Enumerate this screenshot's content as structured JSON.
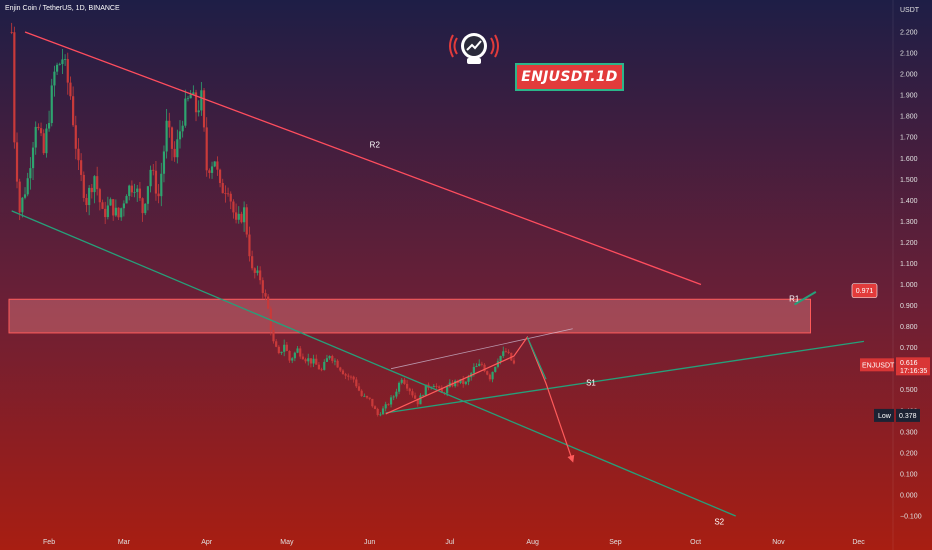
{
  "header": {
    "caption": "Enjin Coin / TetherUS, 1D, BINANCE",
    "currency": "USDT"
  },
  "banner": {
    "text": "ENJUSDT.1D"
  },
  "logo": {
    "icon": "astronaut-radio-logo-icon"
  },
  "colors": {
    "bg_top": "#1e1e46",
    "bg_mid": "#6b1f36",
    "bg_bottom": "#a81e12",
    "up": "#2ea46f",
    "down": "#c93a3a",
    "resistance": "#ff4d5e",
    "support": "#26a07a",
    "zone_fill": "rgba(255,150,150,0.35)",
    "zone_stroke": "#ff5b5b",
    "projection": "#ff5b5b",
    "small_channel": "#e6e6ff"
  },
  "chart_data": {
    "type": "candlestick",
    "symbol": "ENJUSDT",
    "interval": "1D",
    "exchange": "BINANCE",
    "y_axis": {
      "min": -0.15,
      "max": 2.35,
      "ticks": [
        "2.200",
        "2.100",
        "2.000",
        "1.900",
        "1.800",
        "1.700",
        "1.600",
        "1.500",
        "1.400",
        "1.300",
        "1.200",
        "1.100",
        "1.000",
        "0.900",
        "0.800",
        "0.700",
        "0.600",
        "0.500",
        "0.400",
        "0.300",
        "0.200",
        "0.100",
        "0.000",
        "−0.100"
      ],
      "tick_values": [
        2.2,
        2.1,
        2.0,
        1.9,
        1.8,
        1.7,
        1.6,
        1.5,
        1.4,
        1.3,
        1.2,
        1.1,
        1.0,
        0.9,
        0.8,
        0.7,
        0.6,
        0.5,
        0.4,
        0.3,
        0.2,
        0.1,
        0.0,
        -0.1
      ]
    },
    "x_axis": {
      "months": [
        {
          "label": "Feb",
          "day": 31
        },
        {
          "label": "Mar",
          "day": 59
        },
        {
          "label": "Apr",
          "day": 90
        },
        {
          "label": "May",
          "day": 120
        },
        {
          "label": "Jun",
          "day": 151
        },
        {
          "label": "Jul",
          "day": 181
        },
        {
          "label": "Aug",
          "day": 212
        },
        {
          "label": "Sep",
          "day": 243
        },
        {
          "label": "Oct",
          "day": 273
        },
        {
          "label": "Nov",
          "day": 304
        },
        {
          "label": "Dec",
          "day": 334
        }
      ],
      "day_range": [
        16,
        348
      ]
    },
    "price_path": [
      [
        17,
        2.2
      ],
      [
        18,
        1.7
      ],
      [
        20,
        1.35
      ],
      [
        23,
        1.5
      ],
      [
        26,
        1.78
      ],
      [
        29,
        1.62
      ],
      [
        33,
        2.0
      ],
      [
        36,
        2.08
      ],
      [
        39,
        1.9
      ],
      [
        42,
        1.55
      ],
      [
        45,
        1.4
      ],
      [
        48,
        1.52
      ],
      [
        51,
        1.33
      ],
      [
        54,
        1.38
      ],
      [
        57,
        1.32
      ],
      [
        60,
        1.45
      ],
      [
        63,
        1.48
      ],
      [
        66,
        1.35
      ],
      [
        69,
        1.55
      ],
      [
        72,
        1.42
      ],
      [
        75,
        1.75
      ],
      [
        78,
        1.6
      ],
      [
        81,
        1.8
      ],
      [
        84,
        1.9
      ],
      [
        86,
        1.83
      ],
      [
        88,
        1.88
      ],
      [
        90,
        1.55
      ],
      [
        93,
        1.6
      ],
      [
        95,
        1.45
      ],
      [
        98,
        1.47
      ],
      [
        101,
        1.28
      ],
      [
        104,
        1.35
      ],
      [
        107,
        1.06
      ],
      [
        110,
        1.03
      ],
      [
        113,
        0.88
      ],
      [
        115,
        0.72
      ],
      [
        117,
        0.66
      ],
      [
        119,
        0.72
      ],
      [
        121,
        0.64
      ],
      [
        124,
        0.69
      ],
      [
        127,
        0.65
      ],
      [
        130,
        0.63
      ],
      [
        133,
        0.59
      ],
      [
        136,
        0.67
      ],
      [
        139,
        0.62
      ],
      [
        142,
        0.57
      ],
      [
        145,
        0.55
      ],
      [
        148,
        0.47
      ],
      [
        151,
        0.45
      ],
      [
        154,
        0.38
      ],
      [
        157,
        0.42
      ],
      [
        160,
        0.47
      ],
      [
        163,
        0.56
      ],
      [
        166,
        0.5
      ],
      [
        169,
        0.44
      ],
      [
        172,
        0.51
      ],
      [
        175,
        0.53
      ],
      [
        178,
        0.48
      ],
      [
        181,
        0.52
      ],
      [
        184,
        0.54
      ],
      [
        187,
        0.53
      ],
      [
        190,
        0.6
      ],
      [
        193,
        0.62
      ],
      [
        196,
        0.56
      ],
      [
        199,
        0.65
      ],
      [
        202,
        0.68
      ],
      [
        205,
        0.62
      ]
    ],
    "candle_range": [
      17,
      205
    ],
    "trend_lines": [
      {
        "name": "R2",
        "label": "R2",
        "from": [
          22,
          2.2
        ],
        "to": [
          275,
          1.0
        ]
      },
      {
        "name": "S2",
        "label": "S2",
        "from": [
          17,
          1.35
        ],
        "to": [
          288,
          -0.1
        ]
      },
      {
        "name": "S1",
        "label": "S1",
        "from": [
          157,
          0.39
        ],
        "to": [
          336,
          0.73
        ]
      },
      {
        "name": "upper-channel",
        "label": "",
        "from": [
          159,
          0.6
        ],
        "to": [
          227,
          0.79
        ]
      }
    ],
    "zone": {
      "label": "R1",
      "price_low": 0.77,
      "price_high": 0.93,
      "day_from": 16,
      "day_to": 316
    },
    "projection": {
      "points": [
        [
          157,
          0.385
        ],
        [
          205,
          0.66
        ],
        [
          210,
          0.75
        ],
        [
          217,
          0.53
        ],
        [
          227,
          0.16
        ]
      ]
    },
    "r1_marker": {
      "label": "R1",
      "price_tag": "0.971",
      "price": 0.971
    },
    "labels": {
      "R2": "R2",
      "S1": "S1",
      "S2": "S2"
    },
    "current": {
      "label": "ENJUSDT",
      "price": "0.616",
      "sub": "17:16:35",
      "value": 0.616
    },
    "low": {
      "label": "Low",
      "price": "0.378",
      "value": 0.378
    }
  }
}
